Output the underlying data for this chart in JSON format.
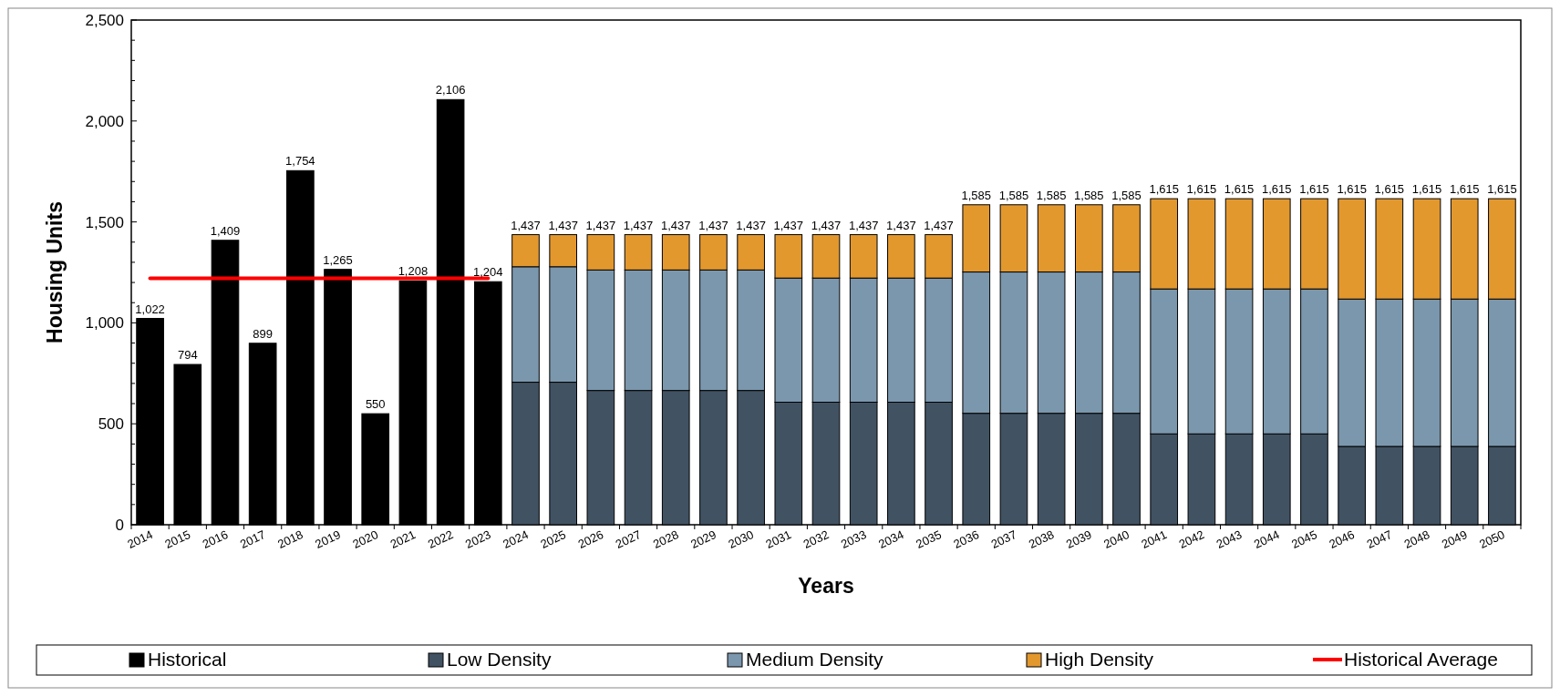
{
  "chart_data": {
    "type": "bar",
    "stacked": true,
    "xlabel": "Years",
    "ylabel": "Housing Units",
    "categories": [
      "2014",
      "2015",
      "2016",
      "2017",
      "2018",
      "2019",
      "2020",
      "2021",
      "2022",
      "2023",
      "2024",
      "2025",
      "2026",
      "2027",
      "2028",
      "2029",
      "2030",
      "2031",
      "2032",
      "2033",
      "2034",
      "2035",
      "2036",
      "2037",
      "2038",
      "2039",
      "2040",
      "2041",
      "2042",
      "2043",
      "2044",
      "2045",
      "2046",
      "2047",
      "2048",
      "2049",
      "2050"
    ],
    "series": [
      {
        "name": "Historical",
        "color": "#000000",
        "values": [
          1022,
          794,
          1409,
          899,
          1754,
          1265,
          550,
          1208,
          2106,
          1204,
          null,
          null,
          null,
          null,
          null,
          null,
          null,
          null,
          null,
          null,
          null,
          null,
          null,
          null,
          null,
          null,
          null,
          null,
          null,
          null,
          null,
          null,
          null,
          null,
          null,
          null,
          null
        ]
      },
      {
        "name": "Low Density",
        "color": "#415263",
        "values": [
          null,
          null,
          null,
          null,
          null,
          null,
          null,
          null,
          null,
          null,
          706,
          706,
          665,
          665,
          665,
          665,
          665,
          607,
          607,
          607,
          607,
          607,
          552,
          552,
          552,
          552,
          552,
          450,
          450,
          450,
          450,
          450,
          388,
          388,
          388,
          388,
          388
        ]
      },
      {
        "name": "Medium Density",
        "color": "#7b97ad",
        "values": [
          null,
          null,
          null,
          null,
          null,
          null,
          null,
          null,
          null,
          null,
          572,
          572,
          597,
          597,
          597,
          597,
          597,
          615,
          615,
          615,
          615,
          615,
          700,
          700,
          700,
          700,
          700,
          718,
          718,
          718,
          718,
          718,
          730,
          730,
          730,
          730,
          730
        ]
      },
      {
        "name": "High Density",
        "color": "#e3982e",
        "values": [
          null,
          null,
          null,
          null,
          null,
          null,
          null,
          null,
          null,
          null,
          159,
          159,
          175,
          175,
          175,
          175,
          175,
          215,
          215,
          215,
          215,
          215,
          333,
          333,
          333,
          333,
          333,
          447,
          447,
          447,
          447,
          447,
          497,
          497,
          497,
          497,
          497
        ]
      },
      {
        "name": "Historical Average",
        "type": "line",
        "color": "#ff0000",
        "values": [
          1221,
          1221,
          1221,
          1221,
          1221,
          1221,
          1221,
          1221,
          1221,
          1221,
          null,
          null,
          null,
          null,
          null,
          null,
          null,
          null,
          null,
          null,
          null,
          null,
          null,
          null,
          null,
          null,
          null,
          null,
          null,
          null,
          null,
          null,
          null,
          null,
          null,
          null,
          null
        ]
      }
    ],
    "totals": [
      "1,022",
      "794",
      "1,409",
      "899",
      "1,754",
      "1,265",
      "550",
      "1,208",
      "2,106",
      "1,204",
      "1,437",
      "1,437",
      "1,437",
      "1,437",
      "1,437",
      "1,437",
      "1,437",
      "1,437",
      "1,437",
      "1,437",
      "1,437",
      "1,437",
      "1,585",
      "1,585",
      "1,585",
      "1,585",
      "1,585",
      "1,615",
      "1,615",
      "1,615",
      "1,615",
      "1,615",
      "1,615",
      "1,615",
      "1,615",
      "1,615",
      "1,615"
    ],
    "ylim": [
      0,
      2500
    ],
    "yticks": [
      0,
      {
        "value": 100,
        "label": null
      },
      {
        "value": 200,
        "label": null
      },
      {
        "value": 300,
        "label": null
      },
      {
        "value": 400,
        "label": null
      },
      500,
      {
        "value": 600,
        "label": null
      },
      {
        "value": 700,
        "label": null
      },
      {
        "value": 800,
        "label": null
      },
      {
        "value": 900,
        "label": null
      },
      {
        "value": 1000,
        "label": "1,000"
      },
      {
        "value": 1100,
        "label": null
      },
      {
        "value": 1200,
        "label": null
      },
      {
        "value": 1300,
        "label": null
      },
      {
        "value": 1400,
        "label": null
      },
      {
        "value": 1500,
        "label": "1,500"
      },
      {
        "value": 1600,
        "label": null
      },
      {
        "value": 1700,
        "label": null
      },
      {
        "value": 1800,
        "label": null
      },
      {
        "value": 1900,
        "label": null
      },
      {
        "value": 2000,
        "label": "2,000"
      },
      {
        "value": 2100,
        "label": null
      },
      {
        "value": 2200,
        "label": null
      },
      {
        "value": 2300,
        "label": null
      },
      {
        "value": 2400,
        "label": null
      },
      {
        "value": 2500,
        "label": "2,500"
      }
    ],
    "grid": false,
    "legend": "bottom"
  }
}
